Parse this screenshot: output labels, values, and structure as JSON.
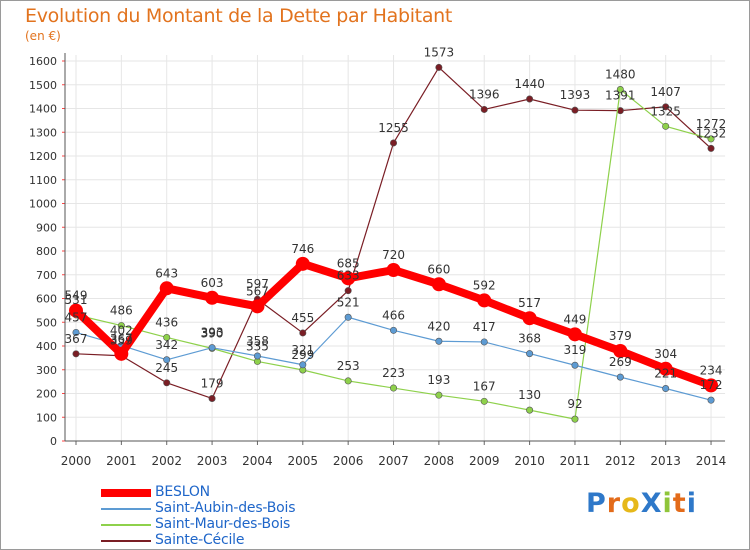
{
  "header": {
    "title": "Evolution du Montant de la Dette par Habitant",
    "subtitle": "(en €)"
  },
  "colors": {
    "title": "#e2731e",
    "legend_text": "#1f66c9",
    "axis": "#333333",
    "grid": "#e6e6e6"
  },
  "chart_data": {
    "type": "line",
    "title": "Evolution du Montant de la Dette par Habitant",
    "subtitle": "(en €)",
    "xlabel": "",
    "ylabel": "",
    "ylim": [
      0,
      1600
    ],
    "yticks": [
      0,
      100,
      200,
      300,
      400,
      500,
      600,
      700,
      800,
      900,
      1000,
      1100,
      1200,
      1300,
      1400,
      1500,
      1600
    ],
    "grid": true,
    "legend_position": "bottom-left",
    "categories": [
      "2000",
      "2001",
      "2002",
      "2003",
      "2004",
      "2005",
      "2006",
      "2007",
      "2008",
      "2009",
      "2010",
      "2011",
      "2012",
      "2013",
      "2014"
    ],
    "series": [
      {
        "name": "BESLON",
        "color": "#ff0000",
        "values": [
          549,
          367,
          643,
          603,
          567,
          746,
          685,
          720,
          660,
          592,
          517,
          449,
          379,
          304,
          234
        ]
      },
      {
        "name": "Saint-Aubin-des-Bois",
        "color": "#5d9bd3",
        "values": [
          457,
          402,
          342,
          393,
          358,
          321,
          521,
          466,
          420,
          417,
          368,
          319,
          269,
          221,
          172
        ]
      },
      {
        "name": "Saint-Maur-des-Bois",
        "color": "#8ed14b",
        "values": [
          531,
          486,
          436,
          390,
          335,
          299,
          253,
          223,
          193,
          167,
          130,
          92,
          1480,
          1325,
          1272
        ]
      },
      {
        "name": "Sainte-Cécile",
        "color": "#7a1e25",
        "values": [
          367,
          359,
          245,
          179,
          597,
          455,
          633,
          1255,
          1573,
          1396,
          1440,
          1393,
          1391,
          1407,
          1232
        ]
      }
    ]
  },
  "legend": [
    {
      "label": "BESLON"
    },
    {
      "label": "Saint-Aubin-des-Bois"
    },
    {
      "label": "Saint-Maur-des-Bois"
    },
    {
      "label": "Sainte-Cécile"
    }
  ],
  "brand": {
    "text": "ProXiti",
    "letters": [
      "P",
      "r",
      "o",
      "X",
      "i",
      "t",
      "i"
    ],
    "letter_colors": [
      "#2e78c9",
      "#e36b1a",
      "#e6b81a",
      "#2e78c9",
      "#8fc53a",
      "#e36b1a",
      "#2e78c9"
    ]
  }
}
